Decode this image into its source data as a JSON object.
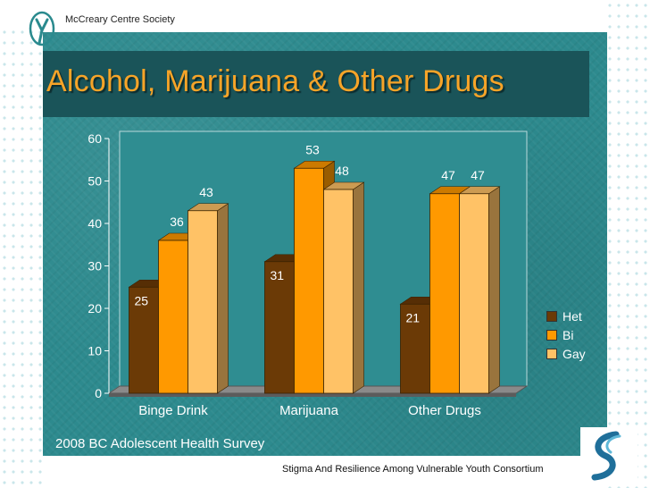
{
  "header": {
    "org_name": "McCreary Centre Society",
    "title": "Alcohol, Marijuana & Other Drugs"
  },
  "footer": {
    "survey": "2008 BC Adolescent Health Survey",
    "consortium": "Stigma And Resilience Among Vulnerable Youth Consortium"
  },
  "theme": {
    "slide_color": "#2d8a8e",
    "band_color": "#1a5459",
    "title_color": "#f7a428"
  },
  "chart_data": {
    "type": "bar",
    "title": "",
    "xlabel": "",
    "ylabel": "",
    "categories": [
      "Binge Drink",
      "Marijuana",
      "Other Drugs"
    ],
    "series": [
      {
        "name": "Het",
        "color": "#6b3a06",
        "values": [
          25,
          31,
          21
        ]
      },
      {
        "name": "Bi",
        "color": "#ff9900",
        "values": [
          36,
          53,
          47
        ]
      },
      {
        "name": "Gay",
        "color": "#ffc266",
        "values": [
          43,
          48,
          47
        ]
      }
    ],
    "ylim": [
      0,
      60
    ],
    "yticks": [
      0,
      10,
      20,
      30,
      40,
      50,
      60
    ],
    "grid": false,
    "legend_position": "right",
    "three_d": true
  }
}
